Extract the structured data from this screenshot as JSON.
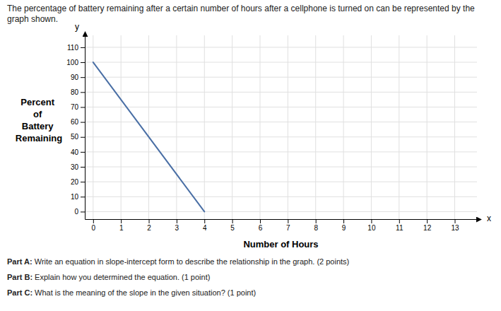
{
  "chart_data": {
    "type": "line",
    "title": "The percentage of battery remaining after a certain number of hours after a cellphone is turned on can be represented by the graph shown.",
    "xlabel": "Number of Hours",
    "ylabel": "Percent\nof\nBattery\nRemaining",
    "axis_end_labels": [
      "x",
      "y"
    ],
    "x": [
      0,
      4
    ],
    "values": [
      100,
      0
    ],
    "color": "#4a6fa5",
    "xlim": [
      -0.3,
      13.8
    ],
    "ylim": [
      -5,
      118
    ],
    "xticks": [
      0,
      1,
      2,
      3,
      4,
      5,
      6,
      7,
      8,
      9,
      10,
      11,
      12,
      13
    ],
    "yticks": [
      0,
      10,
      20,
      30,
      40,
      50,
      60,
      70,
      80,
      90,
      100,
      110
    ],
    "grid": true,
    "annotations": [
      "Part A: Write an equation in slope-intercept form to describe the relationship in the graph. (2 points)",
      "Part B: Explain how you determined the equation. (1 point)",
      "Part C: What is the meaning of the slope in the given situation? (1 point)"
    ]
  }
}
